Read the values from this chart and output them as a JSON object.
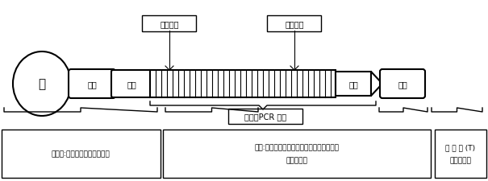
{
  "bg_color": "#ffffff",
  "line_color": "#000000",
  "text_color": "#000000",
  "labels": {
    "jin": "金",
    "antibody_left": "抗体",
    "jituan_left": "基团",
    "antibody_right": "抗体",
    "jituan_right": "基团",
    "downstream": "下游引物",
    "upstream": "上游引物",
    "sample_pcr": "样品：PCR 扩增",
    "box1": "金标垫:胶体金标记固定的抗体",
    "box2_line1": "引物:上游引物和下游引物分别由不同化学基",
    "box2_line2": "团进行标记",
    "box3_line1": "检 测 线 (T)",
    "box3_line2": "固定的抗体"
  }
}
